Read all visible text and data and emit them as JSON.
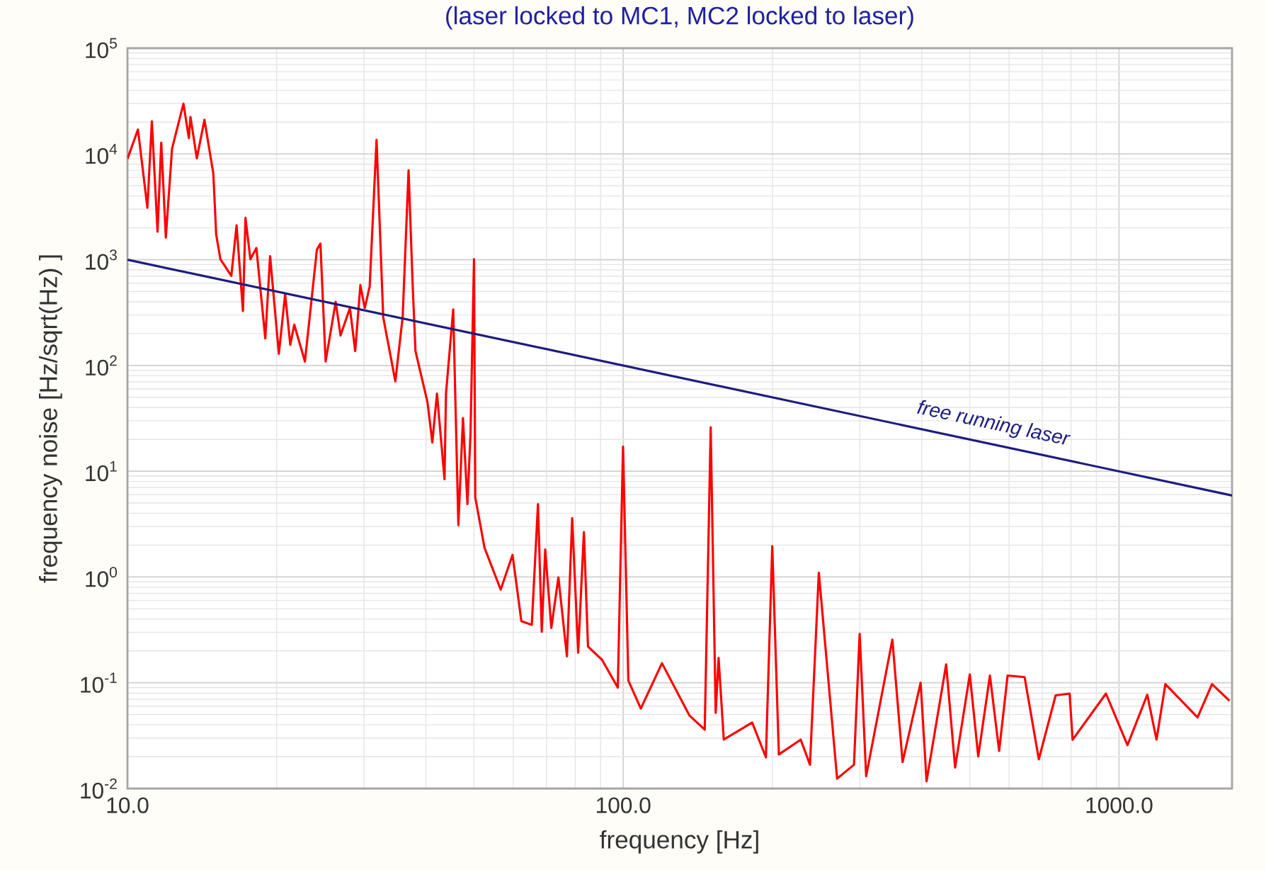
{
  "chart_data": {
    "type": "line",
    "title": "(laser locked to MC1, MC2 locked to laser)",
    "xlabel": "frequency [Hz]",
    "ylabel": "frequency noise [Hz/sqrt(Hz) ]",
    "log": "xy",
    "grid": true,
    "xlim": [
      10,
      1690
    ],
    "ylim": [
      0.01,
      100000
    ],
    "xticks": [
      {
        "value": 10,
        "label": "10.0"
      },
      {
        "value": 100,
        "label": "100.0"
      },
      {
        "value": 1000,
        "label": "1000.0"
      }
    ],
    "yticks": [
      {
        "value": 0.01,
        "label": "10$^{-2}$"
      },
      {
        "value": 0.1,
        "label": "10$^{-1}$"
      },
      {
        "value": 1,
        "label": "10$^{0}$"
      },
      {
        "value": 10,
        "label": "10$^{1}$"
      },
      {
        "value": 100,
        "label": "10$^{2}$"
      },
      {
        "value": 1000,
        "label": "10$^{3}$"
      },
      {
        "value": 10000,
        "label": "10$^{4}$"
      },
      {
        "value": 100000,
        "label": "10$^{5}$"
      }
    ],
    "series": [
      {
        "color": "#ff0000",
        "x": [
          10,
          10.5,
          10.97,
          11.2,
          11.5,
          11.7,
          11.95,
          12.3,
          12.97,
          13.3,
          13.4,
          13.8,
          14.3,
          14.9,
          15.1,
          15.4,
          16.2,
          16.6,
          17.1,
          17.3,
          17.7,
          18.2,
          18.97,
          19.4,
          20.2,
          20.8,
          21.3,
          21.7,
          22.8,
          24.1,
          24.5,
          25.1,
          26.3,
          26.9,
          28.1,
          28.8,
          29.5,
          30.1,
          30.8,
          31.8,
          32.8,
          34.7,
          35.9,
          36.9,
          37.6,
          38.1,
          40.3,
          41.2,
          42.1,
          43.6,
          43.9,
          45.4,
          46.5,
          47.5,
          48.5,
          49.2,
          50.0,
          50.3,
          52.5,
          56.6,
          59.8,
          62.3,
          65.4,
          67.3,
          68.5,
          69.6,
          71.6,
          74.0,
          77.0,
          78.9,
          81.1,
          83.3,
          84.9,
          90.6,
          97.5,
          99.9,
          102.4,
          108.5,
          119.7,
          136,
          146,
          150.1,
          153.6,
          155.7,
          159.5,
          182,
          194,
          199.8,
          206,
          228,
          238,
          248,
          270,
          292,
          299.8,
          309,
          349,
          366,
          398,
          409,
          448,
          467,
          500,
          520,
          549,
          573,
          596,
          645,
          689,
          745,
          795,
          806,
          941,
          1040,
          1140,
          1190,
          1240,
          1440,
          1540,
          1670
        ],
        "values": [
          9000,
          17000,
          3100,
          20300,
          1840,
          12800,
          1620,
          11200,
          29900,
          14100,
          22400,
          9100,
          21000,
          6540,
          1730,
          1010,
          704,
          2110,
          327,
          2490,
          1010,
          1290,
          180,
          1080,
          129,
          472,
          157,
          243,
          109,
          1240,
          1420,
          109,
          399,
          192,
          349,
          137,
          575,
          349,
          557,
          13600,
          286,
          70.8,
          286,
          7000,
          595,
          137,
          44.4,
          18.7,
          54.2,
          8.4,
          54,
          338,
          3.1,
          31.8,
          4.9,
          22.8,
          1010,
          5.64,
          1.89,
          0.76,
          1.62,
          0.382,
          0.353,
          4.89,
          0.304,
          1.82,
          0.33,
          0.99,
          0.178,
          3.6,
          0.193,
          2.66,
          0.22,
          0.165,
          0.09,
          17.1,
          0.105,
          0.057,
          0.153,
          0.049,
          0.036,
          26,
          0.052,
          0.172,
          0.029,
          0.042,
          0.0197,
          1.96,
          0.021,
          0.029,
          0.0168,
          1.1,
          0.0124,
          0.0168,
          0.29,
          0.0131,
          0.256,
          0.0178,
          0.1,
          0.0117,
          0.149,
          0.0158,
          0.12,
          0.0201,
          0.117,
          0.0227,
          0.117,
          0.113,
          0.0189,
          0.076,
          0.079,
          0.0289,
          0.079,
          0.0257,
          0.077,
          0.029,
          0.097,
          0.047,
          0.097,
          0.0675
        ]
      },
      {
        "name": "free running laser",
        "color": "#1c1c80",
        "x": [
          10,
          1690
        ],
        "values": [
          1000,
          5.9
        ]
      }
    ]
  }
}
